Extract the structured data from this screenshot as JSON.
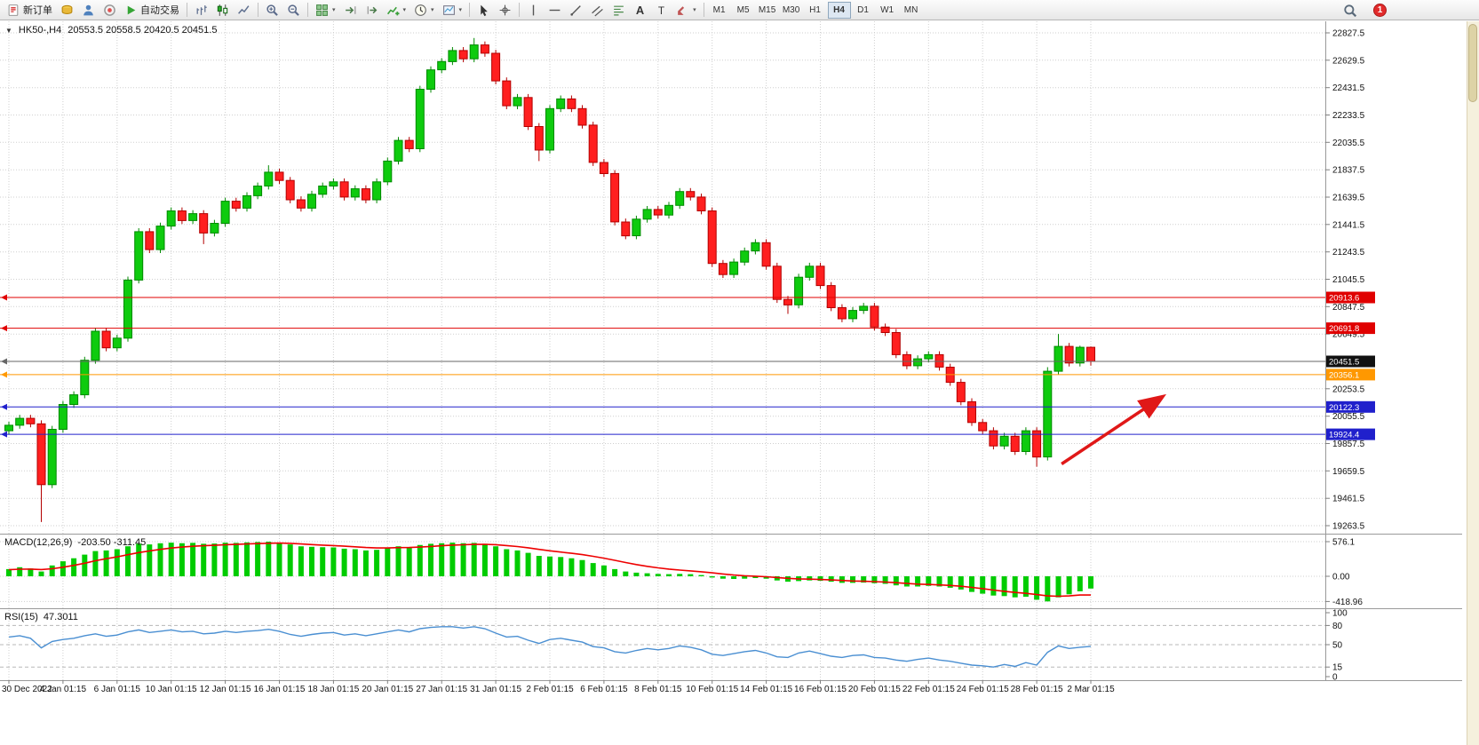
{
  "toolbar": {
    "items": [
      {
        "name": "new-order-button",
        "icon": "new-order-icon",
        "label": "新订单"
      },
      {
        "name": "deposit-button",
        "icon": "gold-coins-icon"
      },
      {
        "name": "profile-button",
        "icon": "profile-icon"
      },
      {
        "name": "community-button",
        "icon": "community-icon"
      },
      {
        "name": "auto-trading-button",
        "icon": "play-icon",
        "label": "自动交易"
      },
      {
        "sep": true
      },
      {
        "name": "bar-chart-button",
        "icon": "bar-chart-icon"
      },
      {
        "name": "candlestick-chart-button",
        "icon": "candlestick-icon"
      },
      {
        "name": "line-chart-button",
        "icon": "line-chart-icon"
      },
      {
        "sep": true
      },
      {
        "name": "zoom-in-button",
        "icon": "zoom-in-icon"
      },
      {
        "name": "zoom-out-button",
        "icon": "zoom-out-icon"
      },
      {
        "sep": true
      },
      {
        "name": "tile-windows-button",
        "icon": "tile-windows-icon",
        "dropdown": true
      },
      {
        "name": "auto-scroll-button",
        "icon": "auto-scroll-icon"
      },
      {
        "name": "chart-shift-button",
        "icon": "chart-shift-icon"
      },
      {
        "name": "indicators-button",
        "icon": "indicators-icon",
        "dropdown": true
      },
      {
        "name": "periods-button",
        "icon": "clock-icon",
        "dropdown": true
      },
      {
        "name": "templates-button",
        "icon": "template-icon",
        "dropdown": true
      },
      {
        "sep": true
      },
      {
        "name": "cursor-button",
        "icon": "cursor-icon"
      },
      {
        "name": "crosshair-button",
        "icon": "crosshair-icon"
      },
      {
        "sep": true
      },
      {
        "name": "vertical-line-button",
        "icon": "vertical-line-icon"
      },
      {
        "name": "horizontal-line-button",
        "icon": "horizontal-line-icon"
      },
      {
        "name": "trendline-button",
        "icon": "trendline-icon"
      },
      {
        "name": "channel-button",
        "icon": "channel-icon"
      },
      {
        "name": "fibonacci-button",
        "icon": "fibonacci-icon"
      },
      {
        "name": "text-button",
        "icon": "text-icon"
      },
      {
        "name": "label-button",
        "icon": "text-label-icon"
      },
      {
        "name": "shapes-button",
        "icon": "shapes-icon",
        "dropdown": true
      },
      {
        "sep": true
      }
    ],
    "timeframes": [
      "M1",
      "M5",
      "M15",
      "M30",
      "H1",
      "H4",
      "D1",
      "W1",
      "MN"
    ],
    "active_timeframe": "H4",
    "notification_count": "1"
  },
  "chart_data": {
    "type": "candlestick",
    "symbol": "HK50-,H4",
    "ohlc_header": "20553.5 20558.5 20420.5 20451.5",
    "price_axis": {
      "step": 198.0,
      "ticks": [
        22827.5,
        22629.5,
        22431.5,
        22233.5,
        22035.5,
        21837.5,
        21639.5,
        21441.5,
        21243.5,
        21045.5,
        20847.5,
        20649.5,
        20451.5,
        20253.5,
        20055.5,
        19857.5,
        19659.5,
        19461.5,
        19263.5
      ]
    },
    "hlines": [
      {
        "price": 20913.6,
        "label": "20913.6",
        "color": "#e00000"
      },
      {
        "price": 20691.8,
        "label": "20691.8",
        "color": "#e00000"
      },
      {
        "price": 20451.5,
        "label": "20451.5",
        "color": "#666666",
        "box_color": "#111111",
        "current": true
      },
      {
        "price": 20356.1,
        "label": "20356.1",
        "color": "#ff9800"
      },
      {
        "price": 20122.3,
        "label": "20122.3",
        "color": "#2020cc"
      },
      {
        "price": 19924.4,
        "label": "19924.4",
        "color": "#2020cc"
      }
    ],
    "arrow": {
      "from_candle": 97.3,
      "from_price": 19710,
      "to_candle": 106.5,
      "to_price": 20190,
      "color": "#e01818"
    },
    "candles": [
      [
        19950,
        20015,
        19925,
        19990
      ],
      [
        19990,
        20065,
        19965,
        20040
      ],
      [
        20040,
        20065,
        19975,
        20000
      ],
      [
        20000,
        20025,
        19290,
        19560
      ],
      [
        19560,
        19985,
        19535,
        19960
      ],
      [
        19960,
        20165,
        19935,
        20140
      ],
      [
        20140,
        20235,
        20115,
        20210
      ],
      [
        20210,
        20485,
        20185,
        20460
      ],
      [
        20460,
        20695,
        20435,
        20670
      ],
      [
        20670,
        20695,
        20525,
        20550
      ],
      [
        20550,
        20645,
        20525,
        20620
      ],
      [
        20620,
        21065,
        20595,
        21040
      ],
      [
        21040,
        21415,
        21015,
        21390
      ],
      [
        21390,
        21415,
        21235,
        21260
      ],
      [
        21260,
        21455,
        21235,
        21430
      ],
      [
        21430,
        21565,
        21405,
        21540
      ],
      [
        21540,
        21565,
        21445,
        21470
      ],
      [
        21470,
        21545,
        21445,
        21520
      ],
      [
        21520,
        21545,
        21300,
        21380
      ],
      [
        21380,
        21475,
        21355,
        21450
      ],
      [
        21450,
        21635,
        21425,
        21610
      ],
      [
        21610,
        21635,
        21535,
        21560
      ],
      [
        21560,
        21675,
        21535,
        21650
      ],
      [
        21650,
        21745,
        21625,
        21720
      ],
      [
        21720,
        21870,
        21695,
        21820
      ],
      [
        21820,
        21845,
        21735,
        21760
      ],
      [
        21760,
        21785,
        21595,
        21620
      ],
      [
        21620,
        21645,
        21535,
        21560
      ],
      [
        21560,
        21685,
        21535,
        21660
      ],
      [
        21660,
        21745,
        21635,
        21720
      ],
      [
        21720,
        21775,
        21695,
        21750
      ],
      [
        21750,
        21775,
        21615,
        21640
      ],
      [
        21640,
        21725,
        21615,
        21700
      ],
      [
        21700,
        21725,
        21595,
        21620
      ],
      [
        21620,
        21775,
        21595,
        21750
      ],
      [
        21750,
        21925,
        21725,
        21900
      ],
      [
        21900,
        22075,
        21875,
        22050
      ],
      [
        22050,
        22075,
        21965,
        21990
      ],
      [
        21990,
        22445,
        21965,
        22420
      ],
      [
        22420,
        22585,
        22395,
        22560
      ],
      [
        22560,
        22645,
        22535,
        22620
      ],
      [
        22620,
        22725,
        22595,
        22700
      ],
      [
        22700,
        22725,
        22615,
        22640
      ],
      [
        22640,
        22790,
        22615,
        22740
      ],
      [
        22740,
        22765,
        22655,
        22680
      ],
      [
        22680,
        22705,
        22455,
        22480
      ],
      [
        22480,
        22505,
        22275,
        22300
      ],
      [
        22300,
        22385,
        22275,
        22360
      ],
      [
        22360,
        22385,
        22125,
        22150
      ],
      [
        22150,
        22175,
        21900,
        21980
      ],
      [
        21980,
        22305,
        21955,
        22280
      ],
      [
        22280,
        22375,
        22255,
        22350
      ],
      [
        22350,
        22375,
        22255,
        22280
      ],
      [
        22280,
        22305,
        22135,
        22160
      ],
      [
        22160,
        22185,
        21865,
        21890
      ],
      [
        21890,
        21915,
        21785,
        21810
      ],
      [
        21810,
        21835,
        21435,
        21460
      ],
      [
        21460,
        21485,
        21335,
        21360
      ],
      [
        21360,
        21505,
        21335,
        21480
      ],
      [
        21480,
        21575,
        21455,
        21550
      ],
      [
        21550,
        21575,
        21485,
        21510
      ],
      [
        21510,
        21605,
        21485,
        21580
      ],
      [
        21580,
        21705,
        21555,
        21680
      ],
      [
        21680,
        21705,
        21615,
        21640
      ],
      [
        21640,
        21665,
        21515,
        21540
      ],
      [
        21540,
        21565,
        21135,
        21160
      ],
      [
        21160,
        21185,
        21055,
        21080
      ],
      [
        21080,
        21195,
        21055,
        21170
      ],
      [
        21170,
        21275,
        21145,
        21250
      ],
      [
        21250,
        21335,
        21225,
        21310
      ],
      [
        21310,
        21335,
        21115,
        21140
      ],
      [
        21140,
        21165,
        20875,
        20900
      ],
      [
        20900,
        20925,
        20795,
        20860
      ],
      [
        20860,
        21085,
        20835,
        21060
      ],
      [
        21060,
        21165,
        21035,
        21140
      ],
      [
        21140,
        21165,
        20975,
        21000
      ],
      [
        21000,
        21025,
        20815,
        20840
      ],
      [
        20840,
        20865,
        20735,
        20760
      ],
      [
        20760,
        20845,
        20735,
        20820
      ],
      [
        20820,
        20875,
        20795,
        20850
      ],
      [
        20850,
        20875,
        20675,
        20700
      ],
      [
        20700,
        20725,
        20635,
        20660
      ],
      [
        20660,
        20685,
        20475,
        20500
      ],
      [
        20500,
        20525,
        20395,
        20420
      ],
      [
        20420,
        20495,
        20395,
        20470
      ],
      [
        20470,
        20525,
        20445,
        20500
      ],
      [
        20500,
        20525,
        20385,
        20410
      ],
      [
        20410,
        20435,
        20275,
        20300
      ],
      [
        20300,
        20325,
        20135,
        20160
      ],
      [
        20160,
        20185,
        19985,
        20010
      ],
      [
        20010,
        20035,
        19925,
        19950
      ],
      [
        19950,
        19975,
        19815,
        19840
      ],
      [
        19840,
        19935,
        19815,
        19910
      ],
      [
        19910,
        19935,
        19775,
        19800
      ],
      [
        19800,
        19975,
        19775,
        19950
      ],
      [
        19950,
        19975,
        19690,
        19760
      ],
      [
        19760,
        20410,
        19735,
        20380
      ],
      [
        20380,
        20650,
        20355,
        20560
      ],
      [
        20560,
        20585,
        20415,
        20440
      ],
      [
        20440,
        20565,
        20415,
        20553.5
      ],
      [
        20553.5,
        20558.5,
        20420.5,
        20451.5
      ]
    ],
    "macd": {
      "label": "MACD(12,26,9)",
      "values_label": "-203.50 -311.45",
      "axis": [
        {
          "v": 576.1,
          "label": "576.1"
        },
        {
          "v": 0,
          "label": "0.00"
        },
        {
          "v": -418.96,
          "label": "-418.96"
        }
      ],
      "histogram": [
        120,
        150,
        130,
        80,
        180,
        250,
        300,
        360,
        420,
        430,
        450,
        500,
        540,
        530,
        550,
        560,
        550,
        555,
        540,
        545,
        560,
        555,
        565,
        570,
        576,
        560,
        530,
        500,
        490,
        485,
        480,
        460,
        450,
        430,
        440,
        470,
        500,
        480,
        520,
        540,
        550,
        560,
        550,
        555,
        540,
        500,
        450,
        430,
        390,
        340,
        330,
        320,
        300,
        270,
        220,
        180,
        120,
        80,
        60,
        50,
        40,
        35,
        40,
        35,
        20,
        -20,
        -40,
        -45,
        -40,
        -30,
        -40,
        -70,
        -90,
        -80,
        -70,
        -75,
        -90,
        -110,
        -110,
        -105,
        -115,
        -125,
        -150,
        -170,
        -170,
        -160,
        -170,
        -190,
        -220,
        -260,
        -290,
        -320,
        -330,
        -350,
        -340,
        -390,
        -418,
        -350,
        -300,
        -250,
        -203.5
      ],
      "signal": [
        110,
        118,
        120,
        112,
        126,
        151,
        181,
        217,
        258,
        292,
        324,
        359,
        395,
        422,
        448,
        470,
        486,
        500,
        508,
        515,
        524,
        530,
        537,
        544,
        550,
        552,
        548,
        538,
        528,
        519,
        511,
        501,
        491,
        479,
        471,
        471,
        477,
        478,
        486,
        497,
        508,
        518,
        524,
        530,
        532,
        526,
        511,
        495,
        474,
        447,
        424,
        403,
        382,
        360,
        332,
        302,
        266,
        229,
        195,
        166,
        141,
        120,
        104,
        90,
        76,
        57,
        38,
        21,
        9,
        1,
        -7,
        -20,
        -34,
        -43,
        -48,
        -53,
        -60,
        -70,
        -78,
        -83,
        -89,
        -96,
        -107,
        -120,
        -130,
        -136,
        -143,
        -152,
        -166,
        -185,
        -206,
        -229,
        -249,
        -269,
        -283,
        -304,
        -327,
        -332,
        -326,
        -311,
        -311.45
      ]
    },
    "rsi": {
      "label": "RSI(15)",
      "value_label": "47.3011",
      "axis": [
        {
          "v": 100,
          "label": "100"
        },
        {
          "v": 80,
          "label": "80"
        },
        {
          "v": 50,
          "label": "50"
        },
        {
          "v": 15,
          "label": "15"
        },
        {
          "v": 0,
          "label": "0"
        }
      ],
      "levels": [
        80,
        50,
        15
      ],
      "values": [
        62,
        64,
        60,
        45,
        55,
        58,
        60,
        64,
        67,
        63,
        65,
        70,
        73,
        69,
        71,
        73,
        70,
        71,
        67,
        68,
        71,
        69,
        71,
        72,
        74,
        71,
        66,
        63,
        66,
        68,
        69,
        65,
        67,
        64,
        67,
        70,
        73,
        70,
        75,
        77,
        78,
        78,
        76,
        78,
        75,
        68,
        62,
        63,
        57,
        52,
        58,
        60,
        57,
        54,
        47,
        45,
        39,
        37,
        41,
        44,
        42,
        44,
        48,
        46,
        42,
        35,
        33,
        36,
        39,
        41,
        37,
        31,
        30,
        37,
        40,
        36,
        32,
        30,
        33,
        34,
        30,
        29,
        26,
        24,
        27,
        29,
        26,
        24,
        21,
        18,
        17,
        15,
        19,
        16,
        22,
        18,
        38,
        48,
        44,
        46,
        47.3
      ]
    },
    "time_labels": [
      "30 Dec 2022",
      "4 Jan 01:15",
      "6 Jan 01:15",
      "10 Jan 01:15",
      "12 Jan 01:15",
      "16 Jan 01:15",
      "18 Jan 01:15",
      "20 Jan 01:15",
      "27 Jan 01:15",
      "31 Jan 01:15",
      "2 Feb 01:15",
      "6 Feb 01:15",
      "8 Feb 01:15",
      "10 Feb 01:15",
      "14 Feb 01:15",
      "16 Feb 01:15",
      "20 Feb 01:15",
      "22 Feb 01:15",
      "24 Feb 01:15",
      "28 Feb 01:15",
      "2 Mar 01:15"
    ],
    "colors": {
      "candle_up": "#0ecb0e",
      "candle_up_border": "#008a00",
      "candle_down": "#ff1f1f",
      "candle_down_border": "#b30000",
      "macd_histogram": "#00cc00",
      "macd_signal": "#ee0000",
      "rsi_line": "#4a8fd2"
    }
  }
}
